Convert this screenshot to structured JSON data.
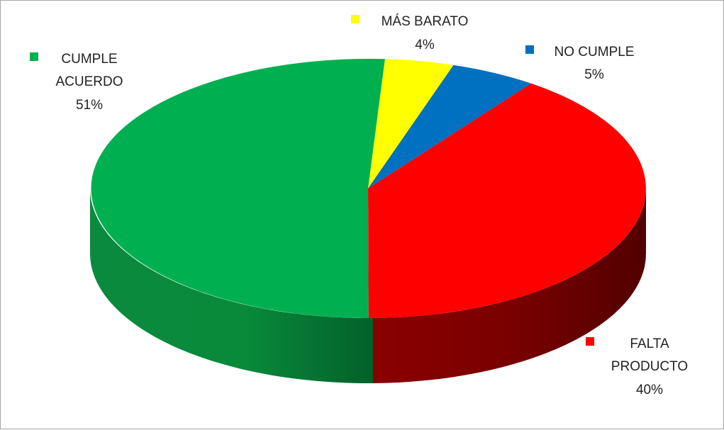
{
  "chart_data": {
    "type": "pie",
    "style": "3d",
    "slices": [
      {
        "label": [
          "CUMPLE",
          "ACUERDO"
        ],
        "percent_label": "51%",
        "value": 51,
        "color": "#00b050"
      },
      {
        "label": [
          "MÁS BARATO"
        ],
        "percent_label": "4%",
        "value": 4,
        "color": "#ffff00"
      },
      {
        "label": [
          "NO CUMPLE"
        ],
        "percent_label": "5%",
        "value": 5,
        "color": "#0070c0"
      },
      {
        "label": [
          "FALTA",
          "PRODUCTO"
        ],
        "percent_label": "40%",
        "value": 40,
        "color": "#ff0000"
      }
    ]
  }
}
